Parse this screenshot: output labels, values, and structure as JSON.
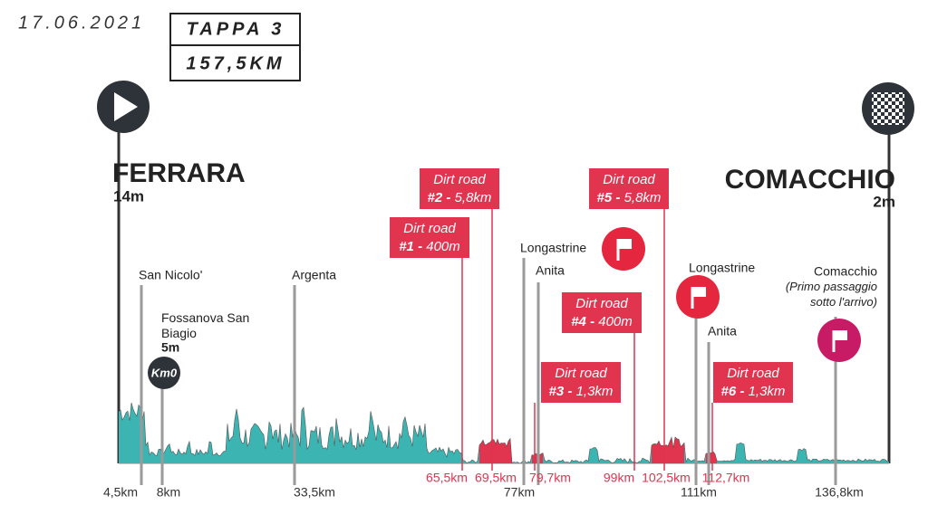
{
  "header": {
    "date": "17.06.2021",
    "stage": "TAPPA 3",
    "distance": "157,5KM"
  },
  "start": {
    "city": "FERRARA",
    "altitude": "14m"
  },
  "finish": {
    "city": "COMACCHIO",
    "altitude": "2m"
  },
  "places": [
    {
      "name": "San Nicolo'"
    },
    {
      "name": "Fossanova San Biagio",
      "altitude": "5m",
      "badge": "Km0"
    },
    {
      "name": "Argenta"
    },
    {
      "name": "Longastrine"
    },
    {
      "name": "Anita"
    },
    {
      "name": "Longastrine"
    },
    {
      "name": "Anita"
    },
    {
      "name": "Comacchio",
      "note": "(Primo passaggio sotto l'arrivo)"
    }
  ],
  "dirt_roads": [
    {
      "title": "Dirt road",
      "number": "#1 -",
      "length": "400m"
    },
    {
      "title": "Dirt road",
      "number": "#2 -",
      "length": "5,8km"
    },
    {
      "title": "Dirt road",
      "number": "#3 -",
      "length": "1,3km"
    },
    {
      "title": "Dirt road",
      "number": "#4 -",
      "length": "400m"
    },
    {
      "title": "Dirt road",
      "number": "#5 -",
      "length": "5,8km"
    },
    {
      "title": "Dirt road",
      "number": "#6 -",
      "length": "1,3km"
    }
  ],
  "km_labels": [
    "4,5km",
    "8km",
    "33,5km",
    "77km",
    "111km",
    "136,8km"
  ],
  "dirt_km_labels": [
    "65,5km",
    "69,5km",
    "79,7km",
    "99km",
    "102,5km",
    "112,7km"
  ]
}
